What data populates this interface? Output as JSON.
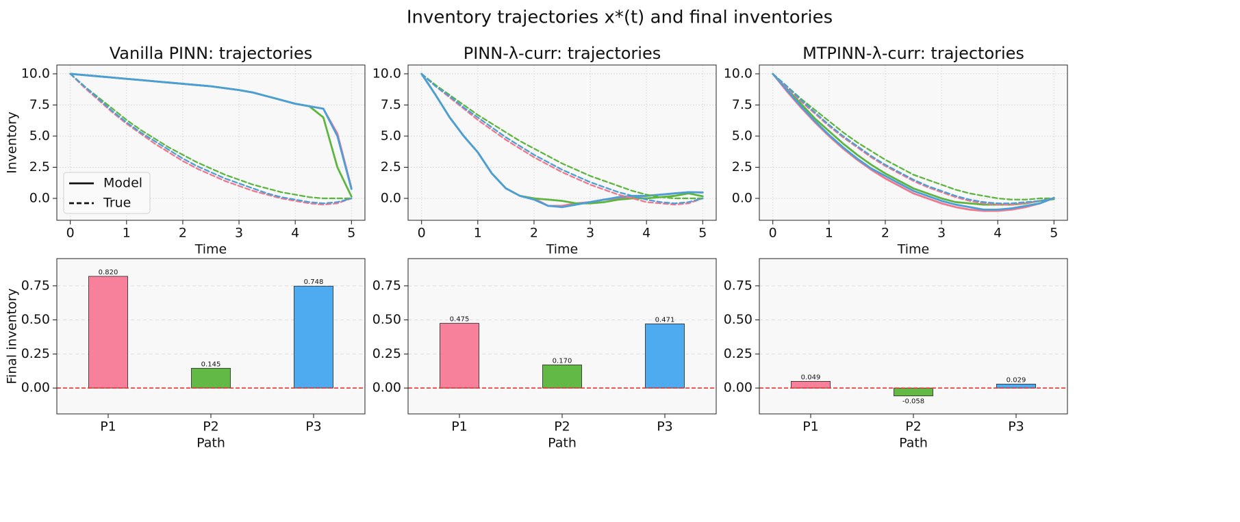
{
  "title": "Inventory trajectories x*(t) and final inventories",
  "chart_data": [
    {
      "type": "line",
      "title": "Vanilla PINN: trajectories",
      "xlabel": "Time",
      "ylabel": "Inventory",
      "xlim": [
        -0.24,
        5.24
      ],
      "ylim": [
        -1.76,
        10.71
      ],
      "xticks": [
        0,
        1,
        2,
        3,
        4,
        5
      ],
      "yticks": [
        {
          "value": 0,
          "label": "0.0"
        },
        {
          "value": 2.5,
          "label": "2.5"
        },
        {
          "value": 5,
          "label": "5.0"
        },
        {
          "value": 7.5,
          "label": "7.5"
        },
        {
          "value": 10,
          "label": "10.0"
        }
      ],
      "grid": "both",
      "legend": [
        {
          "label": "Model",
          "style": "solid"
        },
        {
          "label": "True",
          "style": "dashed"
        }
      ],
      "x": [
        0,
        0.25,
        0.5,
        0.75,
        1,
        1.25,
        1.5,
        1.75,
        2,
        2.25,
        2.5,
        2.75,
        3,
        3.25,
        3.5,
        3.75,
        4,
        4.25,
        4.5,
        4.75,
        5
      ],
      "series": [
        {
          "color": "#f0768b",
          "style": "solid",
          "values": [
            10,
            9.9,
            9.8,
            9.7,
            9.6,
            9.5,
            9.4,
            9.3,
            9.2,
            9.1,
            9.0,
            8.85,
            8.7,
            8.5,
            8.2,
            7.9,
            7.6,
            7.4,
            7.2,
            5.2,
            0.82
          ]
        },
        {
          "color": "#5db53f",
          "style": "solid",
          "values": [
            10,
            9.9,
            9.8,
            9.7,
            9.6,
            9.5,
            9.4,
            9.3,
            9.2,
            9.1,
            9.0,
            8.85,
            8.7,
            8.5,
            8.2,
            7.9,
            7.6,
            7.4,
            6.5,
            2.5,
            0.145
          ]
        },
        {
          "color": "#4a9fd8",
          "style": "solid",
          "values": [
            10,
            9.9,
            9.8,
            9.7,
            9.6,
            9.5,
            9.4,
            9.3,
            9.2,
            9.1,
            9.0,
            8.85,
            8.7,
            8.5,
            8.2,
            7.9,
            7.6,
            7.4,
            7.2,
            5.0,
            0.748
          ]
        },
        {
          "color": "#f0768b",
          "style": "dashed",
          "values": [
            10,
            8.9,
            7.9,
            6.9,
            6.0,
            5.2,
            4.4,
            3.7,
            3.0,
            2.4,
            1.9,
            1.4,
            1.0,
            0.6,
            0.3,
            0.0,
            -0.2,
            -0.4,
            -0.5,
            -0.4,
            0
          ]
        },
        {
          "color": "#5db53f",
          "style": "dashed",
          "values": [
            10,
            9.0,
            8.1,
            7.2,
            6.3,
            5.5,
            4.8,
            4.1,
            3.5,
            2.9,
            2.4,
            1.9,
            1.5,
            1.1,
            0.8,
            0.5,
            0.3,
            0.1,
            0.0,
            0.0,
            0
          ]
        },
        {
          "color": "#4a9fd8",
          "style": "dashed",
          "values": [
            10,
            9.0,
            8.0,
            7.0,
            6.1,
            5.3,
            4.6,
            3.9,
            3.2,
            2.6,
            2.1,
            1.6,
            1.2,
            0.8,
            0.4,
            0.1,
            -0.1,
            -0.3,
            -0.4,
            -0.3,
            0
          ]
        }
      ]
    },
    {
      "type": "line",
      "title": "PINN-λ-curr: trajectories",
      "xlabel": "Time",
      "xlim": [
        -0.24,
        5.24
      ],
      "ylim": [
        -1.76,
        10.71
      ],
      "xticks": [
        0,
        1,
        2,
        3,
        4,
        5
      ],
      "yticks": [
        {
          "value": 0,
          "label": "0.0"
        },
        {
          "value": 2.5,
          "label": "2.5"
        },
        {
          "value": 5,
          "label": "5.0"
        },
        {
          "value": 7.5,
          "label": "7.5"
        },
        {
          "value": 10,
          "label": "10.0"
        }
      ],
      "grid": "both",
      "x": [
        0,
        0.25,
        0.5,
        0.75,
        1,
        1.25,
        1.5,
        1.75,
        2,
        2.25,
        2.5,
        2.75,
        3,
        3.25,
        3.5,
        3.75,
        4,
        4.25,
        4.5,
        4.75,
        5
      ],
      "series": [
        {
          "color": "#f0768b",
          "style": "solid",
          "values": [
            10,
            8.3,
            6.5,
            5.0,
            3.7,
            2.0,
            0.8,
            0.2,
            0.0,
            -0.6,
            -0.6,
            -0.4,
            -0.3,
            -0.1,
            0.0,
            0.1,
            0.2,
            0.3,
            0.4,
            0.5,
            0.475
          ]
        },
        {
          "color": "#5db53f",
          "style": "solid",
          "values": [
            10,
            8.3,
            6.5,
            5.0,
            3.7,
            2.0,
            0.8,
            0.2,
            0.0,
            -0.1,
            -0.2,
            -0.4,
            -0.4,
            -0.3,
            -0.1,
            0.0,
            0.0,
            0.1,
            0.2,
            0.4,
            0.17
          ]
        },
        {
          "color": "#4a9fd8",
          "style": "solid",
          "values": [
            10,
            8.3,
            6.5,
            5.0,
            3.7,
            2.0,
            0.8,
            0.2,
            -0.1,
            -0.6,
            -0.7,
            -0.5,
            -0.3,
            -0.1,
            0.1,
            0.2,
            0.2,
            0.3,
            0.4,
            0.5,
            0.471
          ]
        },
        {
          "color": "#f0768b",
          "style": "dashed",
          "values": [
            10,
            9.0,
            8.1,
            7.2,
            6.3,
            5.5,
            4.7,
            4.0,
            3.3,
            2.7,
            2.1,
            1.6,
            1.1,
            0.7,
            0.3,
            0.0,
            -0.3,
            -0.4,
            -0.5,
            -0.4,
            0
          ]
        },
        {
          "color": "#5db53f",
          "style": "dashed",
          "values": [
            10,
            9.1,
            8.3,
            7.5,
            6.7,
            6.0,
            5.3,
            4.6,
            4.0,
            3.4,
            2.8,
            2.3,
            1.8,
            1.4,
            1.0,
            0.6,
            0.3,
            0.1,
            0.0,
            0.0,
            0
          ]
        },
        {
          "color": "#4a9fd8",
          "style": "dashed",
          "values": [
            10,
            9.0,
            8.2,
            7.3,
            6.5,
            5.7,
            4.9,
            4.2,
            3.5,
            2.9,
            2.3,
            1.8,
            1.3,
            0.9,
            0.5,
            0.2,
            -0.1,
            -0.3,
            -0.4,
            -0.3,
            0
          ]
        }
      ]
    },
    {
      "type": "line",
      "title": "MTPINN-λ-curr: trajectories",
      "xlabel": "Time",
      "xlim": [
        -0.24,
        5.24
      ],
      "ylim": [
        -1.76,
        10.71
      ],
      "xticks": [
        0,
        1,
        2,
        3,
        4,
        5
      ],
      "yticks": [
        {
          "value": 0,
          "label": "0.0"
        },
        {
          "value": 2.5,
          "label": "2.5"
        },
        {
          "value": 5,
          "label": "5.0"
        },
        {
          "value": 7.5,
          "label": "7.5"
        },
        {
          "value": 10,
          "label": "10.0"
        }
      ],
      "grid": "both",
      "x": [
        0,
        0.25,
        0.5,
        0.75,
        1,
        1.25,
        1.5,
        1.75,
        2,
        2.25,
        2.5,
        2.75,
        3,
        3.25,
        3.5,
        3.75,
        4,
        4.25,
        4.5,
        4.75,
        5
      ],
      "series": [
        {
          "color": "#f0768b",
          "style": "solid",
          "values": [
            10,
            8.6,
            7.3,
            6.1,
            5.0,
            4.0,
            3.1,
            2.3,
            1.6,
            1.0,
            0.4,
            0.0,
            -0.4,
            -0.7,
            -0.9,
            -1.0,
            -1.0,
            -0.9,
            -0.7,
            -0.4,
            0.049
          ]
        },
        {
          "color": "#5db53f",
          "style": "solid",
          "values": [
            10,
            8.8,
            7.6,
            6.4,
            5.4,
            4.4,
            3.5,
            2.7,
            2.0,
            1.4,
            0.8,
            0.4,
            0.0,
            -0.3,
            -0.4,
            -0.5,
            -0.5,
            -0.5,
            -0.4,
            -0.2,
            -0.058
          ]
        },
        {
          "color": "#4a9fd8",
          "style": "solid",
          "values": [
            10,
            8.7,
            7.4,
            6.2,
            5.1,
            4.1,
            3.2,
            2.4,
            1.8,
            1.2,
            0.6,
            0.2,
            -0.2,
            -0.5,
            -0.7,
            -0.9,
            -0.9,
            -0.8,
            -0.6,
            -0.4,
            0.029
          ]
        },
        {
          "color": "#f0768b",
          "style": "dashed",
          "values": [
            10,
            8.9,
            7.8,
            6.8,
            5.8,
            4.9,
            4.1,
            3.3,
            2.6,
            2.0,
            1.4,
            0.9,
            0.5,
            0.1,
            -0.2,
            -0.4,
            -0.5,
            -0.5,
            -0.4,
            -0.2,
            0
          ]
        },
        {
          "color": "#5db53f",
          "style": "dashed",
          "values": [
            10,
            9.0,
            8.0,
            7.1,
            6.2,
            5.3,
            4.5,
            3.8,
            3.1,
            2.5,
            1.9,
            1.5,
            1.1,
            0.7,
            0.4,
            0.2,
            0.0,
            -0.1,
            -0.1,
            0.0,
            0
          ]
        },
        {
          "color": "#4a9fd8",
          "style": "dashed",
          "values": [
            10,
            9.0,
            7.9,
            6.9,
            5.9,
            5.0,
            4.2,
            3.4,
            2.7,
            2.1,
            1.5,
            1.0,
            0.6,
            0.2,
            -0.1,
            -0.3,
            -0.4,
            -0.4,
            -0.3,
            -0.2,
            0
          ]
        }
      ]
    },
    {
      "type": "bar",
      "xlabel": "Path",
      "ylabel": "Final inventory",
      "ylim": [
        -0.19,
        0.95
      ],
      "yticks": [
        {
          "value": 0,
          "label": "0.00"
        },
        {
          "value": 0.25,
          "label": "0.25"
        },
        {
          "value": 0.5,
          "label": "0.50"
        },
        {
          "value": 0.75,
          "label": "0.75"
        }
      ],
      "grid": "y",
      "hline": {
        "value": 0,
        "color": "#e8322e"
      },
      "categories": [
        "P1",
        "P2",
        "P3"
      ],
      "values": [
        0.82,
        0.145,
        0.748
      ],
      "value_labels": [
        "0.820",
        "0.145",
        "0.748"
      ],
      "colors": [
        "#f7819a",
        "#62b946",
        "#4eabef"
      ]
    },
    {
      "type": "bar",
      "xlabel": "Path",
      "ylim": [
        -0.19,
        0.95
      ],
      "yticks": [
        {
          "value": 0,
          "label": "0.00"
        },
        {
          "value": 0.25,
          "label": "0.25"
        },
        {
          "value": 0.5,
          "label": "0.50"
        },
        {
          "value": 0.75,
          "label": "0.75"
        }
      ],
      "grid": "y",
      "hline": {
        "value": 0,
        "color": "#e8322e"
      },
      "categories": [
        "P1",
        "P2",
        "P3"
      ],
      "values": [
        0.475,
        0.17,
        0.471
      ],
      "value_labels": [
        "0.475",
        "0.170",
        "0.471"
      ],
      "colors": [
        "#f7819a",
        "#62b946",
        "#4eabef"
      ]
    },
    {
      "type": "bar",
      "xlabel": "Path",
      "ylim": [
        -0.19,
        0.95
      ],
      "yticks": [
        {
          "value": 0,
          "label": "0.00"
        },
        {
          "value": 0.25,
          "label": "0.25"
        },
        {
          "value": 0.5,
          "label": "0.50"
        },
        {
          "value": 0.75,
          "label": "0.75"
        }
      ],
      "grid": "y",
      "hline": {
        "value": 0,
        "color": "#e8322e"
      },
      "categories": [
        "P1",
        "P2",
        "P3"
      ],
      "values": [
        0.049,
        -0.058,
        0.029
      ],
      "value_labels": [
        "0.049",
        "-0.058",
        "0.029"
      ],
      "colors": [
        "#f7819a",
        "#62b946",
        "#4eabef"
      ]
    }
  ]
}
